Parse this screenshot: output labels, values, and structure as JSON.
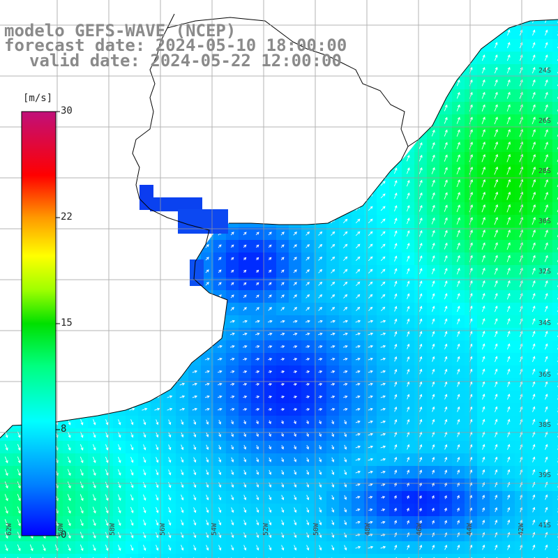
{
  "header": {
    "line1": "modelo GEFS-WAVE (NCEP)",
    "line2": "forecast date: 2024-05-10 18:00:00",
    "line3": "valid date: 2024-05-22 12:00:00"
  },
  "colorbar": {
    "unit": "[m/s]",
    "ticks": [
      "30",
      "22",
      "15",
      "8",
      "0"
    ],
    "range": [
      0,
      30
    ],
    "colors": [
      "#0000ff",
      "#0090ff",
      "#00ffff",
      "#00ff66",
      "#00e000",
      "#ffff00",
      "#ff8000",
      "#ff0000",
      "#cc0066",
      "#c0107a"
    ]
  },
  "map": {
    "land_color": "#ffffff",
    "coast_color": "#000000",
    "grid_color": "#9a9a9a",
    "lat_labels": [
      "24S",
      "26S",
      "28S",
      "30S",
      "32S",
      "34S",
      "36S",
      "38S",
      "39S",
      "41S"
    ],
    "lon_labels": [
      "62W",
      "60W",
      "58W",
      "56W",
      "54W",
      "52W",
      "50W",
      "48W",
      "46W",
      "44W",
      "42W"
    ]
  }
}
